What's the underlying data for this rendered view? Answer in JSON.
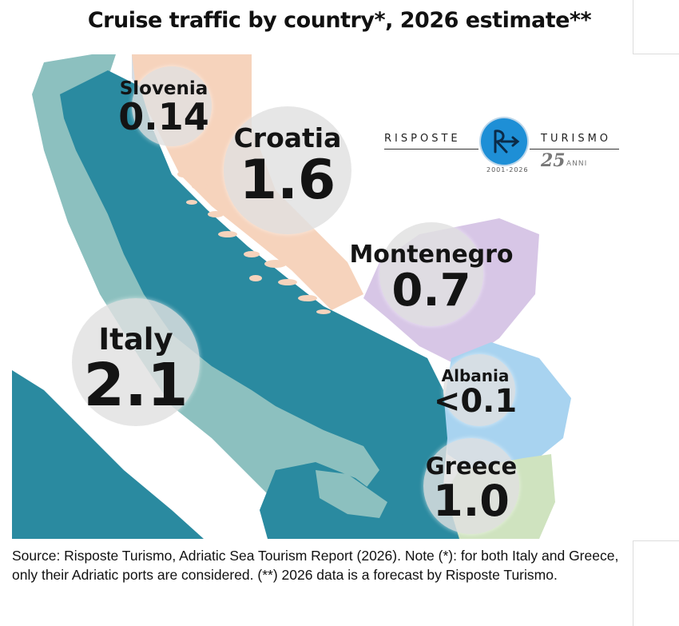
{
  "title": "Cruise traffic by country*, 2026 estimate**",
  "countries": [
    {
      "name": "Slovenia",
      "value": "0.14",
      "color": "#d6dde4"
    },
    {
      "name": "Croatia",
      "value": "1.6",
      "color": "#f6d3bc"
    },
    {
      "name": "Montenegro",
      "value": "0.7",
      "color": "#d7c6e6"
    },
    {
      "name": "Italy",
      "value": "2.1",
      "color": "#8cc0bf"
    },
    {
      "name": "Albania",
      "value": "<0.1",
      "color": "#a8d3f0"
    },
    {
      "name": "Greece",
      "value": "1.0",
      "color": "#cfe3bf"
    }
  ],
  "sea_color": "#2a8aa0",
  "logo": {
    "left_word": "RISPOSTE",
    "right_word": "TURISMO",
    "years": "2001-2026",
    "anniversary": "25",
    "anniversary_word": "ANNI",
    "accent": "#1e8fd6"
  },
  "source": "Source: Risposte Turismo, Adriatic Sea Tourism Report (2026). Note (*): for both Italy and Greece, only their Adriatic ports are considered. (**) 2026 data is a forecast by Risposte Turismo."
}
